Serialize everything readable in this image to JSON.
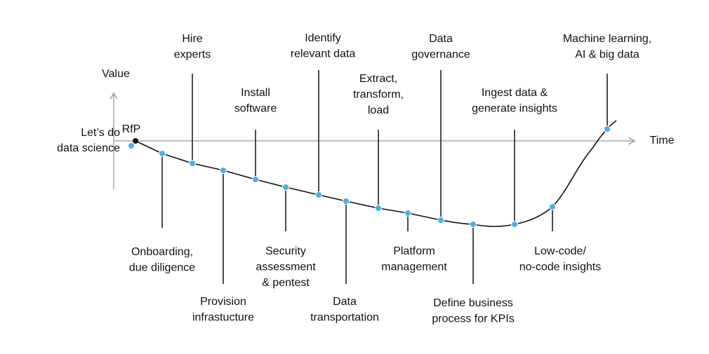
{
  "axes": {
    "y_label": "Value",
    "x_label": "Time"
  },
  "start": {
    "label": [
      "Let’s do",
      "data science"
    ]
  },
  "milestones": [
    {
      "label": [
        "RfP"
      ]
    },
    {
      "label": [
        "Onboarding,",
        "due diligence"
      ]
    },
    {
      "label": [
        "Hire",
        "experts"
      ]
    },
    {
      "label": [
        "Provision",
        "infrastucture"
      ]
    },
    {
      "label": [
        "Install",
        "software"
      ]
    },
    {
      "label": [
        "Security",
        "assessment",
        "& pentest"
      ]
    },
    {
      "label": [
        "Identify",
        "relevant data"
      ]
    },
    {
      "label": [
        "Data",
        "transportation"
      ]
    },
    {
      "label": [
        "Extract,",
        "transform,",
        "load"
      ]
    },
    {
      "label": [
        "Platform",
        "management"
      ]
    },
    {
      "label": [
        "Data",
        "governance"
      ]
    },
    {
      "label": [
        "Define business",
        "process for KPIs"
      ]
    },
    {
      "label": [
        "Ingest data &",
        "generate insights"
      ]
    },
    {
      "label": [
        "Low-code/",
        "no-code insights"
      ]
    },
    {
      "label": [
        "Machine learning,",
        "AI & big data"
      ]
    }
  ]
}
